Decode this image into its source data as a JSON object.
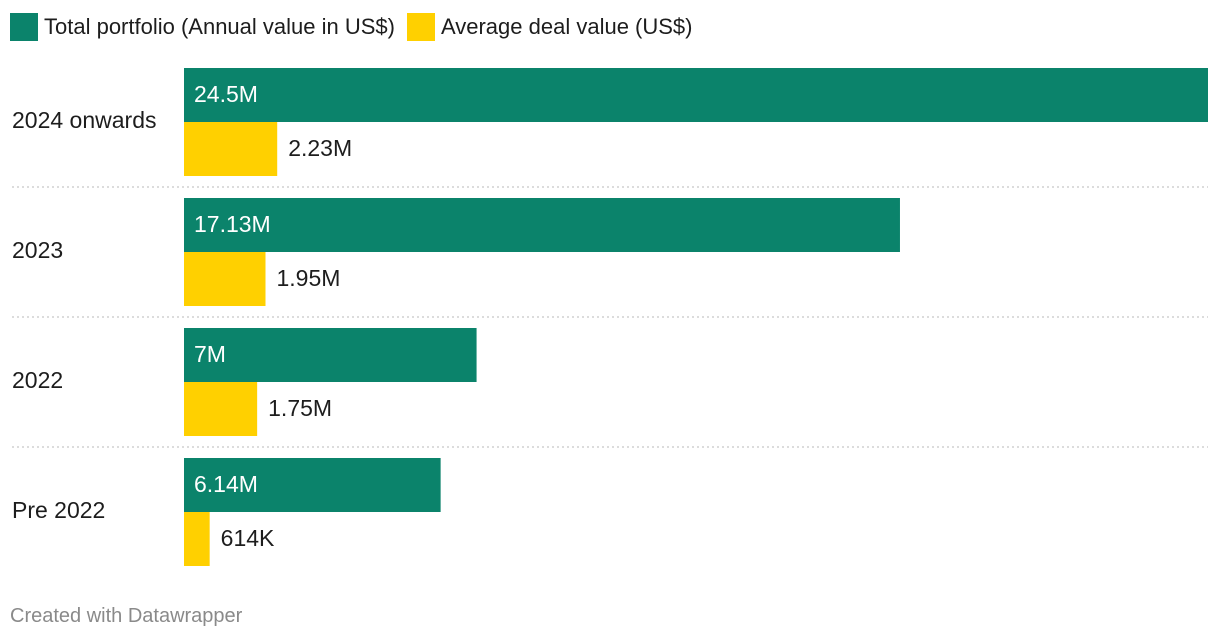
{
  "colors": {
    "total": "#0b836b",
    "average": "#ffd000",
    "gridline": "#c8c8c8",
    "label_dark": "#1d1d1d",
    "label_light": "#ffffff"
  },
  "legend": [
    {
      "label": "Total portfolio (Annual value in US$)",
      "color": "#0b836b"
    },
    {
      "label": "Average deal value (US$)",
      "color": "#ffd000"
    }
  ],
  "chart_data": {
    "type": "bar",
    "orientation": "horizontal",
    "grouped": true,
    "categories": [
      "2024 onwards",
      "2023",
      "2022",
      "Pre 2022"
    ],
    "series": [
      {
        "name": "Total portfolio (Annual value in US$)",
        "values": [
          24500000,
          17130000,
          7000000,
          6140000
        ],
        "labels": [
          "24.5M",
          "17.13M",
          "7M",
          "6.14M"
        ],
        "color": "#0b836b"
      },
      {
        "name": "Average deal value (US$)",
        "values": [
          2230000,
          1950000,
          1750000,
          614000
        ],
        "labels": [
          "2.23M",
          "1.95M",
          "1.75M",
          "614K"
        ],
        "color": "#ffd000"
      }
    ],
    "xlim": [
      0,
      24500000
    ],
    "grid": false,
    "legend_position": "top-left",
    "separators": "dotted"
  },
  "footer": "Created with Datawrapper"
}
